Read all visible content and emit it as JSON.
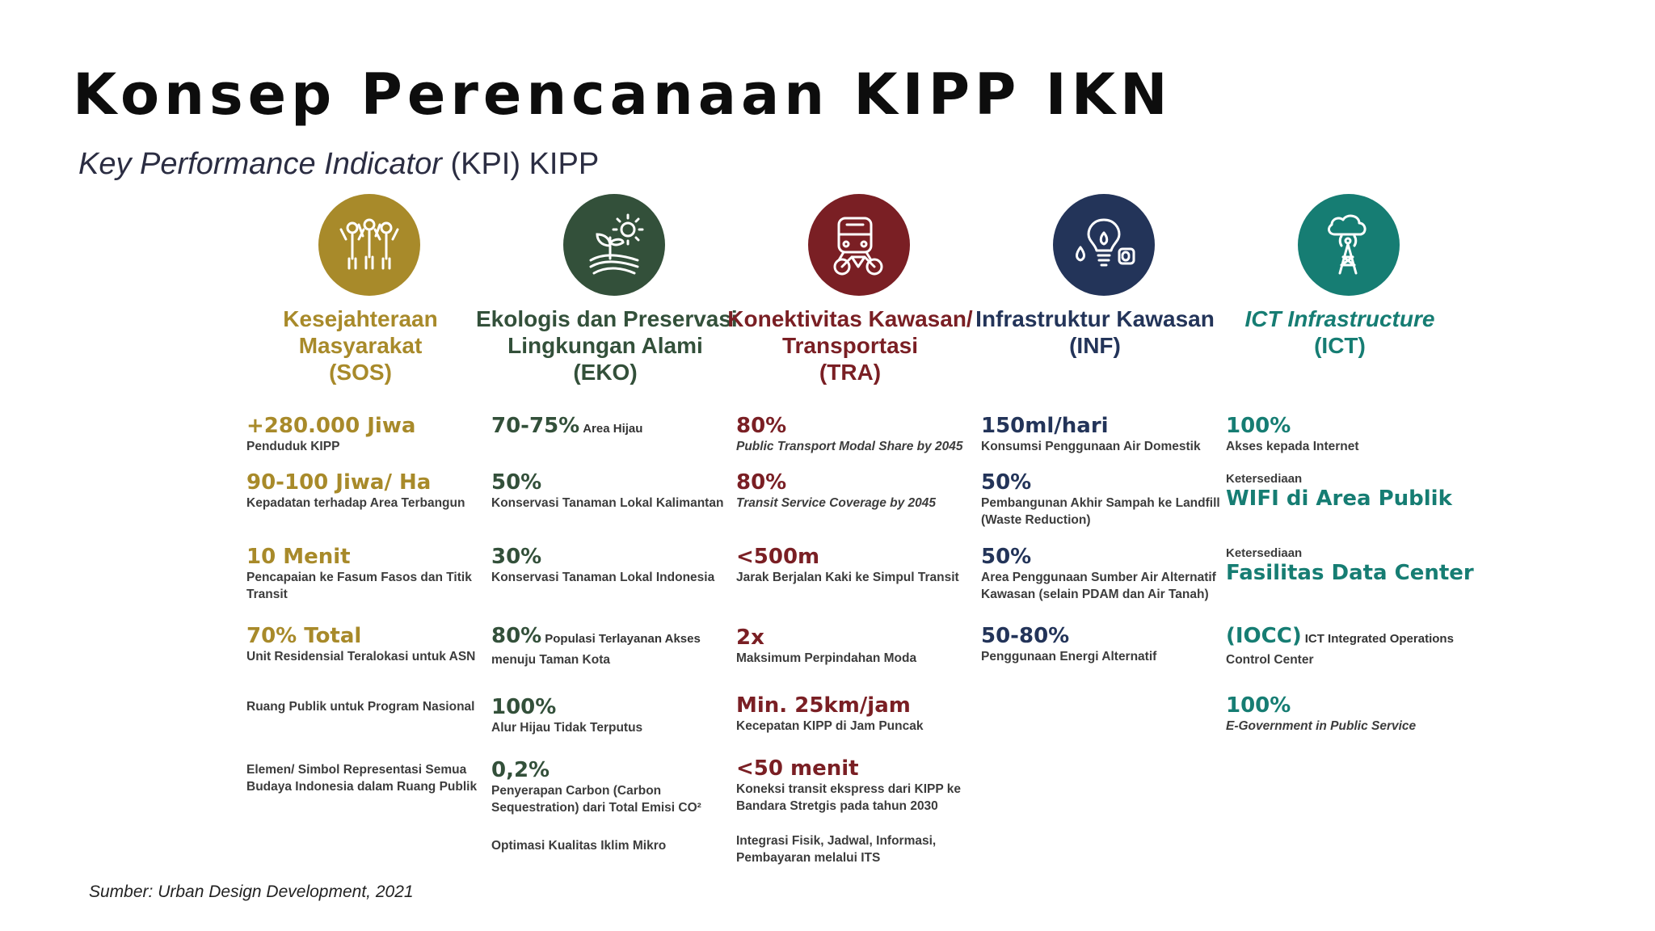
{
  "title": "Konsep Perencanaan KIPP IKN",
  "subtitle": {
    "italic": "Key Performance Indicator",
    "rest": " (KPI) KIPP"
  },
  "colors": {
    "sos": "#a88a2a",
    "eko": "#33503a",
    "tra": "#7a1f24",
    "inf": "#233459",
    "ict": "#167d73"
  },
  "columns": [
    {
      "icon": "people-celebrating-icon",
      "heading": [
        "Kesejahteraan",
        "Masyarakat",
        "(SOS)"
      ],
      "kpis": [
        {
          "value": "+280.000 Jiwa",
          "desc": "Penduduk KIPP"
        },
        {
          "value": "90-100 Jiwa/ Ha",
          "desc": "Kepadatan terhadap Area Terbangun"
        },
        {
          "value": "10 Menit",
          "desc": "Pencapaian ke Fasum Fasos dan Titik Transit"
        },
        {
          "value": "70% Total",
          "desc": "Unit Residensial Teralokasi untuk ASN"
        },
        {
          "desc": "Ruang Publik untuk Program Nasional"
        },
        {
          "desc": "Elemen/ Simbol Representasi Semua Budaya Indonesia dalam Ruang Publik"
        }
      ]
    },
    {
      "icon": "plant-sun-icon",
      "heading": [
        "Ekologis dan Preservasi",
        "Lingkungan Alami",
        "(EKO)"
      ],
      "kpis": [
        {
          "value": "70-75%",
          "inline": "Area Hijau"
        },
        {
          "value": "50%",
          "desc": "Konservasi Tanaman Lokal Kalimantan"
        },
        {
          "value": "30%",
          "desc": "Konservasi Tanaman Lokal Indonesia"
        },
        {
          "value": "80%",
          "inline": "Populasi Terlayanan Akses",
          "desc": "menuju Taman Kota"
        },
        {
          "value": "100%",
          "desc": "Alur Hijau Tidak Terputus"
        },
        {
          "value": "0,2%",
          "desc": "Penyerapan Carbon (Carbon Sequestration) dari Total Emisi CO²"
        },
        {
          "desc": "Optimasi Kualitas Iklim Mikro"
        }
      ]
    },
    {
      "icon": "train-bicycle-icon",
      "heading": [
        "Konektivitas Kawasan/",
        "Transportasi",
        "(TRA)"
      ],
      "kpis": [
        {
          "value": "80%",
          "desc": "Public Transport Modal Share by 2045"
        },
        {
          "value": "80%",
          "desc": "Transit Service Coverage by 2045"
        },
        {
          "value": "<500m",
          "desc": "Jarak Berjalan Kaki ke  Simpul Transit"
        },
        {
          "value": "2x",
          "desc": "Maksimum Perpindahan Moda"
        },
        {
          "value": "Min. 25km/jam",
          "desc": "Kecepatan KIPP di Jam Puncak"
        },
        {
          "value": "<50 menit",
          "desc": "Koneksi transit ekspress dari KIPP ke Bandara Stretgis pada tahun 2030"
        },
        {
          "desc": "Integrasi Fisik, Jadwal, Informasi, Pembayaran melalui ITS"
        }
      ]
    },
    {
      "icon": "water-bulb-recycle-icon",
      "heading": [
        "Infrastruktur Kawasan",
        "(INF)"
      ],
      "kpis": [
        {
          "value": "150ml/hari",
          "desc": "Konsumsi Penggunaan Air Domestik"
        },
        {
          "value": "50%",
          "desc": "Pembangunan Akhir Sampah ke Landfill (Waste Reduction)"
        },
        {
          "value": "50%",
          "desc": "Area Penggunaan Sumber Air Alternatif Kawasan (selain PDAM dan Air Tanah)"
        },
        {
          "value": "50-80%",
          "desc": "Penggunaan Energi Alternatif"
        }
      ]
    },
    {
      "icon": "cell-tower-cloud-icon",
      "heading": [
        "ICT Infrastructure",
        "(ICT)"
      ],
      "kpis": [
        {
          "value": "100%",
          "desc": "Akses kepada Internet"
        },
        {
          "pre": "Ketersediaan",
          "value": "WIFI di Area Publik"
        },
        {
          "pre": "Ketersediaan",
          "value": "Fasilitas Data Center"
        },
        {
          "value": "(IOCC)",
          "inline": "ICT Integrated Operations",
          "desc": "Control Center"
        },
        {
          "value": "100%",
          "desc": "E-Government in Public Service"
        }
      ]
    }
  ],
  "source": "Sumber: Urban Design Development, 2021"
}
